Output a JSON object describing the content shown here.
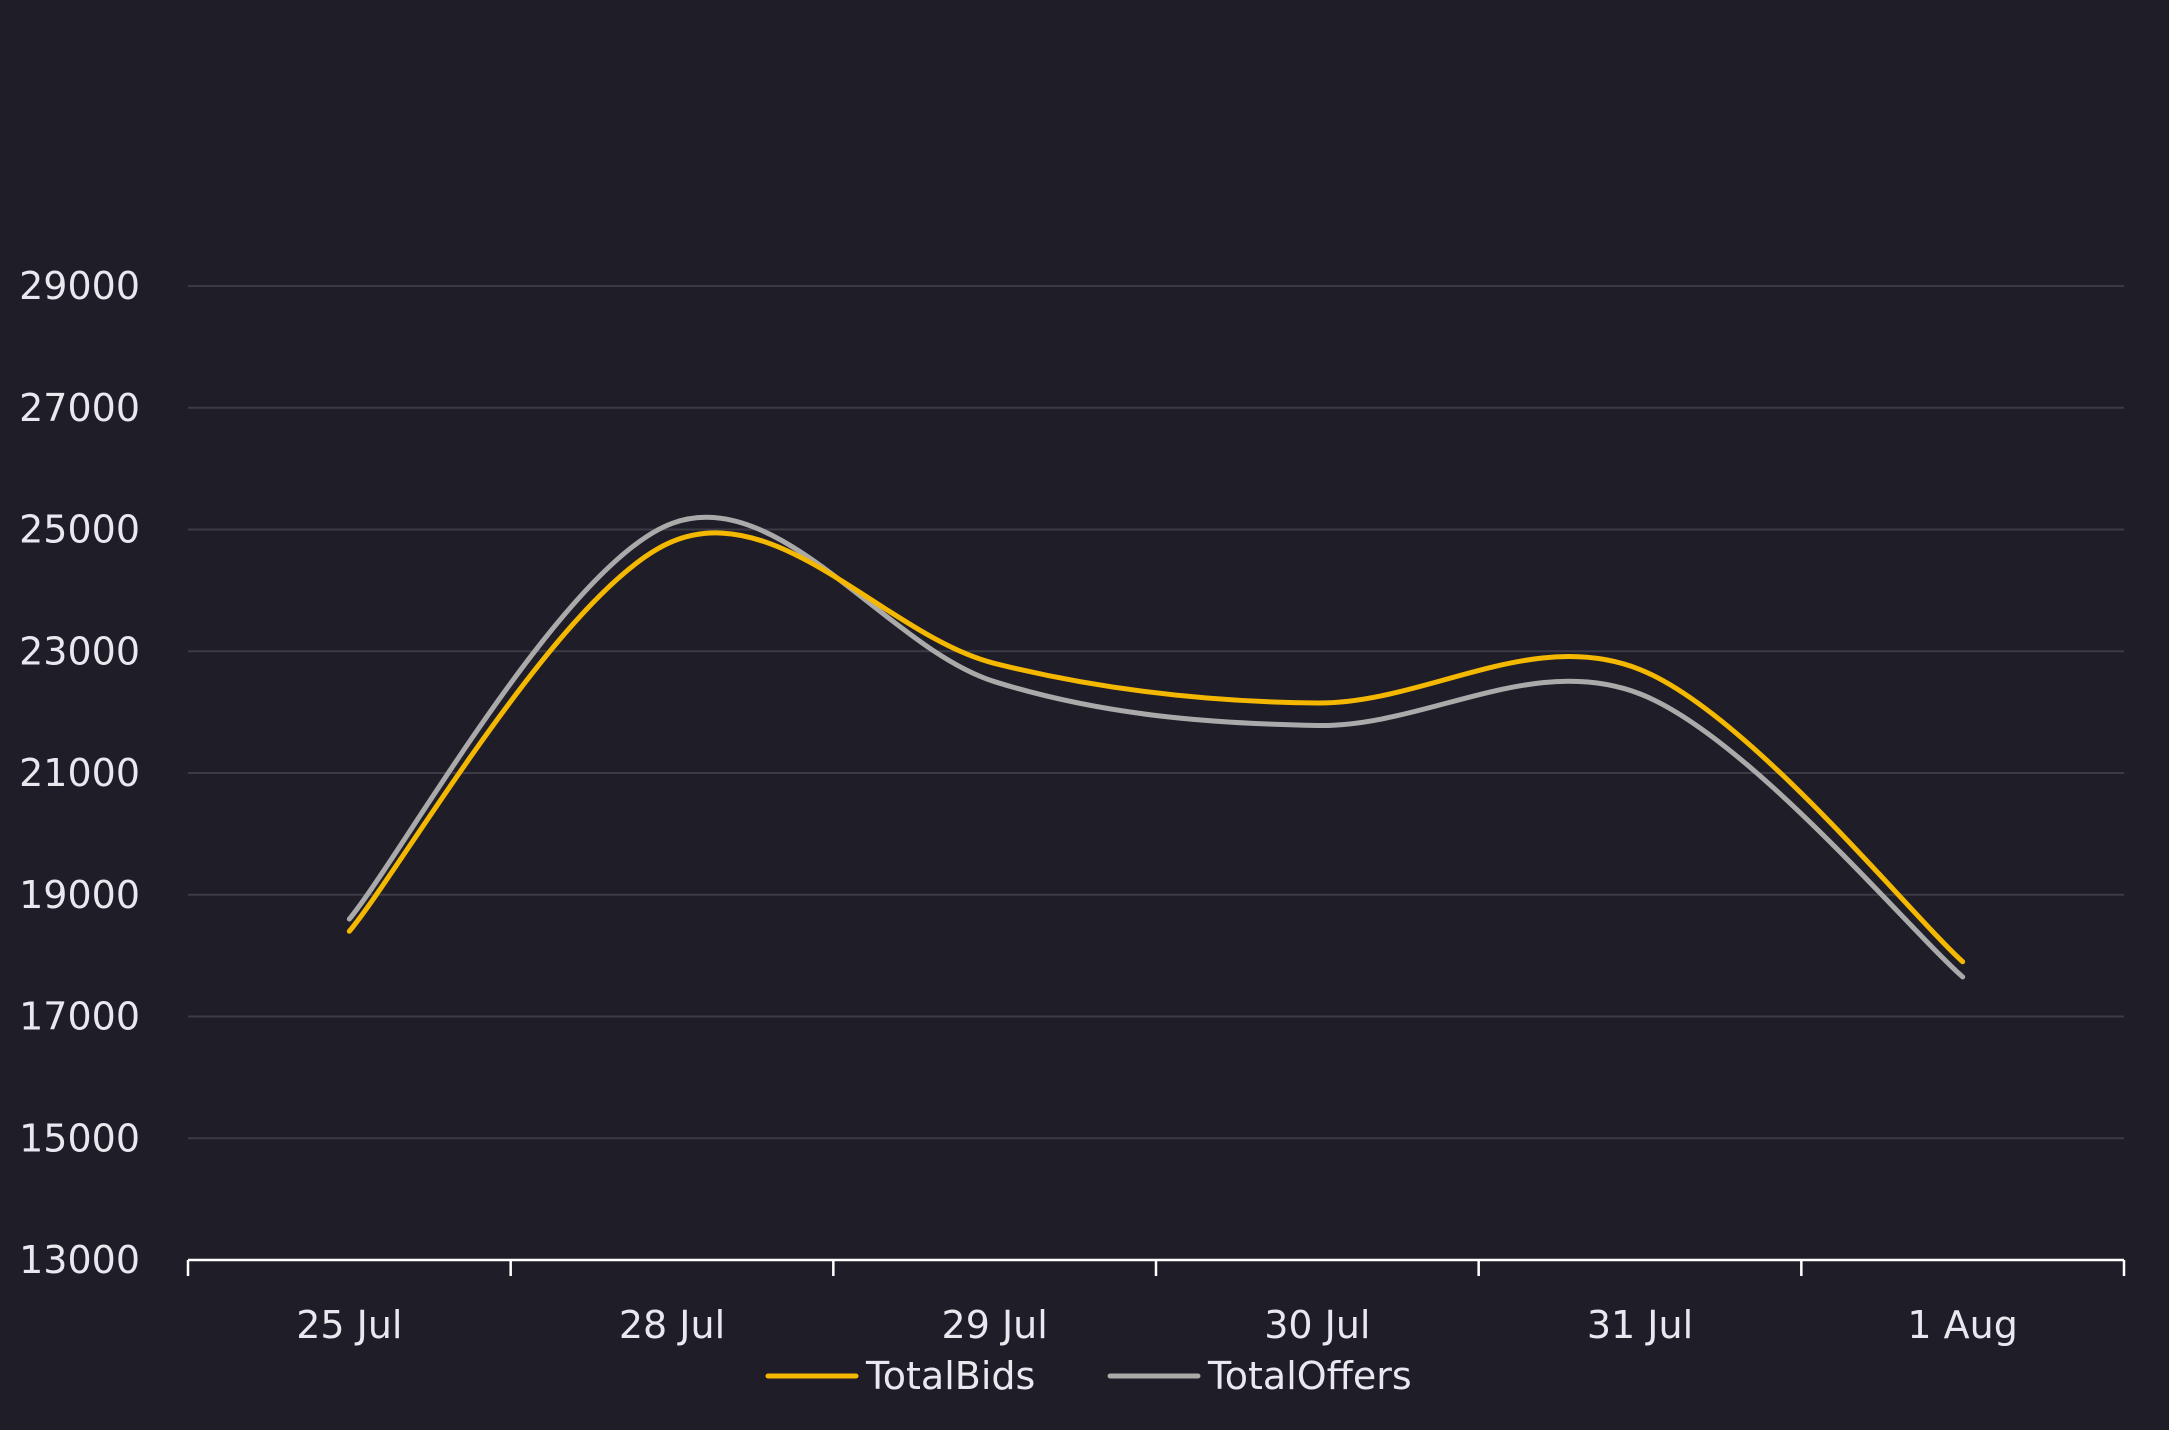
{
  "chart_data": {
    "type": "line",
    "categories": [
      "25 Jul",
      "28 Jul",
      "29 Jul",
      "30 Jul",
      "31 Jul",
      "1 Aug"
    ],
    "series": [
      {
        "name": "TotalBids",
        "color": "#f5b800",
        "values": [
          18400,
          24800,
          22800,
          22150,
          22700,
          17900
        ]
      },
      {
        "name": "TotalOffers",
        "color": "#aaaaaa",
        "values": [
          18600,
          25100,
          22500,
          21780,
          22300,
          17650
        ]
      }
    ],
    "yticks": [
      13000,
      15000,
      17000,
      19000,
      21000,
      23000,
      25000,
      27000,
      29000
    ],
    "ylim": [
      13000,
      29000
    ],
    "grid": true,
    "legend": "bottom-center",
    "title": "",
    "xlabel": "",
    "ylabel": ""
  }
}
